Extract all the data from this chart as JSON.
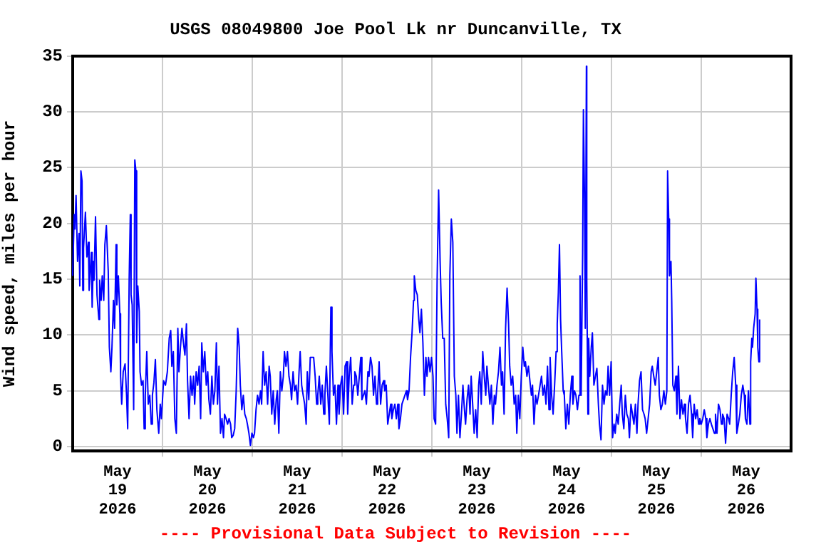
{
  "chart_data": {
    "type": "line",
    "title": "USGS 08049800 Joe Pool Lk nr Duncanville, TX",
    "ylabel": "Wind speed, miles per hour",
    "annotations": [
      "---- Provisional Data Subject to Revision ----"
    ],
    "xlim": [
      "2026-05-19T00:00",
      "2026-05-27T00:00"
    ],
    "xticks": [
      {
        "value": "2026-05-19T12:00",
        "label": "May 19 2026"
      },
      {
        "value": "2026-05-20T00:00",
        "label": null
      },
      {
        "value": "2026-05-20T12:00",
        "label": "May 20 2026"
      },
      {
        "value": "2026-05-21T00:00",
        "label": null
      },
      {
        "value": "2026-05-21T12:00",
        "label": "May 21 2026"
      },
      {
        "value": "2026-05-22T00:00",
        "label": null
      },
      {
        "value": "2026-05-22T12:00",
        "label": "May 22 2026"
      },
      {
        "value": "2026-05-23T00:00",
        "label": null
      },
      {
        "value": "2026-05-23T12:00",
        "label": "May 23 2026"
      },
      {
        "value": "2026-05-24T00:00",
        "label": null
      },
      {
        "value": "2026-05-24T12:00",
        "label": "May 24 2026"
      },
      {
        "value": "2026-05-25T00:00",
        "label": null
      },
      {
        "value": "2026-05-25T12:00",
        "label": "May 25 2026"
      },
      {
        "value": "2026-05-26T00:00",
        "label": null
      },
      {
        "value": "2026-05-26T12:00",
        "label": "May 26 2026"
      }
    ],
    "ylim": [
      -0.4,
      35
    ],
    "yticks": [
      0,
      5,
      10,
      15,
      20,
      25,
      30,
      35
    ],
    "grid": true,
    "legend": false,
    "marker": "none",
    "series": [
      {
        "color": "#0000ff",
        "x": [
          "2026-05-19T00:00",
          "2026-05-19T00:24",
          "2026-05-19T00:36",
          "2026-05-19T00:54",
          "2026-05-19T01:18",
          "2026-05-19T01:42",
          "2026-05-19T01:54",
          "2026-05-19T02:12",
          "2026-05-19T02:30",
          "2026-05-19T02:42",
          "2026-05-19T02:54",
          "2026-05-19T03:24",
          "2026-05-19T03:48",
          "2026-05-19T04:12",
          "2026-05-19T04:24",
          "2026-05-19T05:00",
          "2026-05-19T05:12",
          "2026-05-19T05:30",
          "2026-05-19T05:42",
          "2026-05-19T06:06",
          "2026-05-19T06:30",
          "2026-05-19T07:00",
          "2026-05-19T07:12",
          "2026-05-19T07:36",
          "2026-05-19T07:54",
          "2026-05-19T08:18",
          "2026-05-19T08:36",
          "2026-05-19T09:00",
          "2026-05-19T09:30",
          "2026-05-19T09:48",
          "2026-05-19T10:12",
          "2026-05-19T10:30",
          "2026-05-19T10:54",
          "2026-05-19T11:12",
          "2026-05-19T11:36",
          "2026-05-19T11:48",
          "2026-05-19T12:12",
          "2026-05-19T12:36",
          "2026-05-19T12:48",
          "2026-05-19T13:06",
          "2026-05-19T13:30",
          "2026-05-19T14:00",
          "2026-05-19T14:24",
          "2026-05-19T14:42",
          "2026-05-19T15:06",
          "2026-05-19T15:24",
          "2026-05-19T15:36",
          "2026-05-19T15:54",
          "2026-05-19T16:18",
          "2026-05-19T16:36",
          "2026-05-19T16:54",
          "2026-05-19T17:06",
          "2026-05-19T17:24",
          "2026-05-19T17:48",
          "2026-05-19T18:00",
          "2026-05-19T18:24",
          "2026-05-19T18:48",
          "2026-05-19T19:06",
          "2026-05-19T19:24",
          "2026-05-19T19:48",
          "2026-05-19T20:12",
          "2026-05-19T20:36",
          "2026-05-19T21:00",
          "2026-05-19T21:18",
          "2026-05-19T21:42",
          "2026-05-19T22:06",
          "2026-05-19T22:30",
          "2026-05-19T23:00",
          "2026-05-19T23:24",
          "2026-05-19T23:42",
          "2026-05-20T00:18",
          "2026-05-20T00:48",
          "2026-05-20T01:18",
          "2026-05-20T01:48",
          "2026-05-20T02:12",
          "2026-05-20T02:30",
          "2026-05-20T02:54",
          "2026-05-20T03:18",
          "2026-05-20T03:42",
          "2026-05-20T04:06",
          "2026-05-20T04:24",
          "2026-05-20T04:48",
          "2026-05-20T05:12",
          "2026-05-20T05:36",
          "2026-05-20T06:00",
          "2026-05-20T06:24",
          "2026-05-20T06:42",
          "2026-05-20T07:06",
          "2026-05-20T07:30",
          "2026-05-20T07:54",
          "2026-05-20T08:18",
          "2026-05-20T08:36",
          "2026-05-20T09:00",
          "2026-05-20T09:24",
          "2026-05-20T09:48",
          "2026-05-20T10:12",
          "2026-05-20T10:30",
          "2026-05-20T10:54",
          "2026-05-20T11:18",
          "2026-05-20T11:42",
          "2026-05-20T12:06",
          "2026-05-20T12:24",
          "2026-05-20T12:48",
          "2026-05-20T13:12",
          "2026-05-20T13:36",
          "2026-05-20T14:00",
          "2026-05-20T14:24",
          "2026-05-20T14:42",
          "2026-05-20T15:06",
          "2026-05-20T15:30",
          "2026-05-20T15:54",
          "2026-05-20T16:18",
          "2026-05-20T16:36",
          "2026-05-20T17:00",
          "2026-05-20T17:24",
          "2026-05-20T17:48",
          "2026-05-20T18:12",
          "2026-05-20T18:30",
          "2026-05-20T18:54",
          "2026-05-20T19:18",
          "2026-05-20T19:42",
          "2026-05-20T20:06",
          "2026-05-20T20:30",
          "2026-05-20T20:48",
          "2026-05-20T21:12",
          "2026-05-20T21:36",
          "2026-05-20T22:00",
          "2026-05-20T22:24",
          "2026-05-20T22:42",
          "2026-05-20T23:06",
          "2026-05-20T23:30",
          "2026-05-20T23:54",
          "2026-05-21T00:18",
          "2026-05-21T00:36",
          "2026-05-21T01:00",
          "2026-05-21T01:24",
          "2026-05-21T01:48",
          "2026-05-21T02:12",
          "2026-05-21T02:30",
          "2026-05-21T02:54",
          "2026-05-21T03:18",
          "2026-05-21T03:42",
          "2026-05-21T04:06",
          "2026-05-21T04:30",
          "2026-05-21T04:48",
          "2026-05-21T05:12",
          "2026-05-21T05:36",
          "2026-05-21T06:00",
          "2026-05-21T06:24",
          "2026-05-21T06:42",
          "2026-05-21T07:06",
          "2026-05-21T07:30",
          "2026-05-21T07:54",
          "2026-05-21T08:18",
          "2026-05-21T08:36",
          "2026-05-21T09:00",
          "2026-05-21T09:24",
          "2026-05-21T09:48",
          "2026-05-21T10:12",
          "2026-05-21T10:30",
          "2026-05-21T10:54",
          "2026-05-21T11:18",
          "2026-05-21T11:42",
          "2026-05-21T12:06",
          "2026-05-21T12:30",
          "2026-05-21T12:48",
          "2026-05-21T13:12",
          "2026-05-21T13:36",
          "2026-05-21T14:00",
          "2026-05-21T14:24",
          "2026-05-21T14:42",
          "2026-05-21T15:06",
          "2026-05-21T15:30",
          "2026-05-21T16:24",
          "2026-05-21T16:48",
          "2026-05-21T17:12",
          "2026-05-21T17:30",
          "2026-05-21T17:54",
          "2026-05-21T18:18",
          "2026-05-21T18:42",
          "2026-05-21T19:06",
          "2026-05-21T19:24",
          "2026-05-21T19:48",
          "2026-05-21T20:12",
          "2026-05-21T20:36",
          "2026-05-21T21:00",
          "2026-05-21T21:18",
          "2026-05-21T21:42",
          "2026-05-21T22:06",
          "2026-05-21T22:30",
          "2026-05-21T22:54",
          "2026-05-21T23:12",
          "2026-05-21T23:36",
          "2026-05-22T00:00",
          "2026-05-22T00:24",
          "2026-05-22T00:48",
          "2026-05-22T01:12",
          "2026-05-22T01:30",
          "2026-05-22T01:54",
          "2026-05-22T02:18",
          "2026-05-22T02:42",
          "2026-05-22T03:06",
          "2026-05-22T03:24",
          "2026-05-22T03:48",
          "2026-05-22T04:12",
          "2026-05-22T04:36",
          "2026-05-22T05:00",
          "2026-05-22T05:18",
          "2026-05-22T05:42",
          "2026-05-22T06:06",
          "2026-05-22T06:30",
          "2026-05-22T06:54",
          "2026-05-22T07:12",
          "2026-05-22T07:36",
          "2026-05-22T08:00",
          "2026-05-22T08:24",
          "2026-05-22T08:48",
          "2026-05-22T09:12",
          "2026-05-22T09:30",
          "2026-05-22T09:54",
          "2026-05-22T10:18",
          "2026-05-22T10:42",
          "2026-05-22T11:06",
          "2026-05-22T11:24",
          "2026-05-22T11:48",
          "2026-05-22T12:12",
          "2026-05-22T12:36",
          "2026-05-22T13:00",
          "2026-05-22T13:18",
          "2026-05-22T13:42",
          "2026-05-22T14:06",
          "2026-05-22T14:30",
          "2026-05-22T14:54",
          "2026-05-22T15:12",
          "2026-05-22T15:36",
          "2026-05-22T16:00",
          "2026-05-22T16:24",
          "2026-05-22T16:48",
          "2026-05-22T17:12",
          "2026-05-22T17:30",
          "2026-05-22T17:54",
          "2026-05-22T18:18",
          "2026-05-22T18:42",
          "2026-05-22T19:06",
          "2026-05-22T19:18",
          "2026-05-22T19:42",
          "2026-05-22T20:06",
          "2026-05-22T20:30",
          "2026-05-22T20:48",
          "2026-05-22T21:12",
          "2026-05-22T21:36",
          "2026-05-22T22:00",
          "2026-05-22T22:24",
          "2026-05-22T22:42",
          "2026-05-22T23:06",
          "2026-05-22T23:30",
          "2026-05-22T23:54",
          "2026-05-23T00:18",
          "2026-05-23T00:36",
          "2026-05-23T01:00",
          "2026-05-23T01:24",
          "2026-05-23T01:48",
          "2026-05-23T02:12",
          "2026-05-23T02:30",
          "2026-05-23T02:54",
          "2026-05-23T03:18",
          "2026-05-23T03:42",
          "2026-05-23T04:06",
          "2026-05-23T04:30",
          "2026-05-23T04:48",
          "2026-05-23T05:12",
          "2026-05-23T05:36",
          "2026-05-23T06:00",
          "2026-05-23T06:24",
          "2026-05-23T06:42",
          "2026-05-23T07:06",
          "2026-05-23T07:30",
          "2026-05-23T07:54",
          "2026-05-23T08:18",
          "2026-05-23T08:36",
          "2026-05-23T09:00",
          "2026-05-23T09:24",
          "2026-05-23T09:48",
          "2026-05-23T10:12",
          "2026-05-23T10:30",
          "2026-05-23T10:54",
          "2026-05-23T11:18",
          "2026-05-23T11:42",
          "2026-05-23T12:06",
          "2026-05-23T12:30",
          "2026-05-23T12:48",
          "2026-05-23T13:12",
          "2026-05-23T13:36",
          "2026-05-23T14:00",
          "2026-05-23T14:24",
          "2026-05-23T14:42",
          "2026-05-23T15:06",
          "2026-05-23T15:30",
          "2026-05-23T15:54",
          "2026-05-23T16:18",
          "2026-05-23T16:42",
          "2026-05-23T17:00",
          "2026-05-23T17:24",
          "2026-05-23T17:48",
          "2026-05-23T18:12",
          "2026-05-23T18:36",
          "2026-05-23T18:54",
          "2026-05-23T19:18",
          "2026-05-23T19:42",
          "2026-05-23T20:06",
          "2026-05-23T20:30",
          "2026-05-23T20:48",
          "2026-05-23T21:12",
          "2026-05-23T21:36",
          "2026-05-23T22:00",
          "2026-05-23T22:24",
          "2026-05-23T22:42",
          "2026-05-23T23:06",
          "2026-05-23T23:30",
          "2026-05-23T23:54",
          "2026-05-24T00:18",
          "2026-05-24T00:42",
          "2026-05-24T01:00",
          "2026-05-24T01:24",
          "2026-05-24T01:48",
          "2026-05-24T02:12",
          "2026-05-24T02:36",
          "2026-05-24T02:54",
          "2026-05-24T03:18",
          "2026-05-24T03:42",
          "2026-05-24T04:06",
          "2026-05-24T04:30",
          "2026-05-24T05:18",
          "2026-05-24T05:42",
          "2026-05-24T06:06",
          "2026-05-24T06:30",
          "2026-05-24T06:54",
          "2026-05-24T07:18",
          "2026-05-24T07:36",
          "2026-05-24T08:00",
          "2026-05-24T08:24",
          "2026-05-24T08:48",
          "2026-05-24T09:12",
          "2026-05-24T09:30",
          "2026-05-24T09:48",
          "2026-05-24T10:06",
          "2026-05-24T10:24",
          "2026-05-24T10:42",
          "2026-05-24T11:06",
          "2026-05-24T11:24",
          "2026-05-24T11:48",
          "2026-05-24T12:12",
          "2026-05-24T12:36",
          "2026-05-24T13:00",
          "2026-05-24T13:24",
          "2026-05-24T13:42",
          "2026-05-24T14:06",
          "2026-05-24T14:30",
          "2026-05-24T14:54",
          "2026-05-24T15:18",
          "2026-05-24T15:36",
          "2026-05-24T15:54",
          "2026-05-24T16:18",
          "2026-05-24T16:30",
          "2026-05-24T16:48",
          "2026-05-24T17:00",
          "2026-05-24T17:18",
          "2026-05-24T17:24",
          "2026-05-24T17:42",
          "2026-05-24T17:54",
          "2026-05-24T18:12",
          "2026-05-24T18:36",
          "2026-05-24T18:54",
          "2026-05-24T19:18",
          "2026-05-24T19:42",
          "2026-05-24T20:06",
          "2026-05-24T20:30",
          "2026-05-24T20:48",
          "2026-05-24T21:12",
          "2026-05-24T21:36",
          "2026-05-24T22:00",
          "2026-05-24T22:24",
          "2026-05-24T22:48",
          "2026-05-24T23:06",
          "2026-05-24T23:30",
          "2026-05-24T23:54",
          "2026-05-25T00:18",
          "2026-05-25T00:42",
          "2026-05-25T01:00",
          "2026-05-25T01:24",
          "2026-05-25T01:48",
          "2026-05-25T02:12",
          "2026-05-25T02:36",
          "2026-05-25T02:54",
          "2026-05-25T03:18",
          "2026-05-25T03:42",
          "2026-05-25T04:06",
          "2026-05-25T04:30",
          "2026-05-25T04:48",
          "2026-05-25T05:12",
          "2026-05-25T05:36",
          "2026-05-25T06:00",
          "2026-05-25T06:24",
          "2026-05-25T06:48",
          "2026-05-25T07:06",
          "2026-05-25T07:30",
          "2026-05-25T07:54",
          "2026-05-25T08:18",
          "2026-05-25T08:42",
          "2026-05-25T09:00",
          "2026-05-25T09:24",
          "2026-05-25T09:48",
          "2026-05-25T10:12",
          "2026-05-25T10:36",
          "2026-05-25T10:54",
          "2026-05-25T11:18",
          "2026-05-25T11:42",
          "2026-05-25T12:06",
          "2026-05-25T12:30",
          "2026-05-25T12:48",
          "2026-05-25T13:12",
          "2026-05-25T13:36",
          "2026-05-25T14:00",
          "2026-05-25T14:24",
          "2026-05-25T14:48",
          "2026-05-25T15:00",
          "2026-05-25T15:18",
          "2026-05-25T15:30",
          "2026-05-25T15:54",
          "2026-05-25T16:06",
          "2026-05-25T16:24",
          "2026-05-25T16:48",
          "2026-05-25T17:12",
          "2026-05-25T17:30",
          "2026-05-25T17:54",
          "2026-05-25T18:18",
          "2026-05-25T18:42",
          "2026-05-25T19:06",
          "2026-05-25T19:30",
          "2026-05-25T19:48",
          "2026-05-25T20:12",
          "2026-05-25T20:36",
          "2026-05-25T21:00",
          "2026-05-25T21:24",
          "2026-05-25T21:42",
          "2026-05-25T22:06",
          "2026-05-25T22:30",
          "2026-05-25T22:54",
          "2026-05-25T23:18",
          "2026-05-25T23:36",
          "2026-05-26T00:00",
          "2026-05-26T00:24",
          "2026-05-26T00:48",
          "2026-05-26T01:12",
          "2026-05-26T01:30",
          "2026-05-26T01:54",
          "2026-05-26T02:18",
          "2026-05-26T02:42",
          "2026-05-26T03:06",
          "2026-05-26T03:30",
          "2026-05-26T03:48",
          "2026-05-26T04:12",
          "2026-05-26T04:36",
          "2026-05-26T05:00",
          "2026-05-26T05:24",
          "2026-05-26T05:42",
          "2026-05-26T06:06",
          "2026-05-26T06:30",
          "2026-05-26T06:54",
          "2026-05-26T07:18",
          "2026-05-26T07:36",
          "2026-05-26T08:00",
          "2026-05-26T08:24",
          "2026-05-26T08:48",
          "2026-05-26T09:12",
          "2026-05-26T09:30",
          "2026-05-26T09:54",
          "2026-05-26T10:18",
          "2026-05-26T10:42",
          "2026-05-26T11:06",
          "2026-05-26T11:30",
          "2026-05-26T11:48",
          "2026-05-26T12:12",
          "2026-05-26T12:36",
          "2026-05-26T13:00",
          "2026-05-26T13:12",
          "2026-05-26T13:30",
          "2026-05-26T13:42",
          "2026-05-26T14:00",
          "2026-05-26T14:24",
          "2026-05-26T14:36",
          "2026-05-26T14:54",
          "2026-05-26T15:06",
          "2026-05-26T15:24",
          "2026-05-26T15:36"
        ],
        "values": [
          15.3,
          20.8,
          19.5,
          22.5,
          16.6,
          19.1,
          14.4,
          24.7,
          23.8,
          14,
          17.8,
          21,
          17,
          18.3,
          14,
          17.4,
          12.5,
          16.6,
          14.9,
          20.6,
          13.6,
          11.4,
          14.9,
          13.1,
          15.3,
          13.1,
          18.1,
          19.8,
          15.7,
          8.9,
          6.7,
          8.9,
          13.1,
          10.6,
          18.1,
          12.7,
          15.3,
          11.9,
          6.3,
          3.8,
          6.7,
          7.4,
          4.6,
          1.6,
          15.1,
          20.8,
          13.6,
          12.7,
          3.3,
          25.7,
          24.7,
          9.3,
          14.4,
          12.1,
          6.7,
          5.5,
          5.9,
          1.6,
          4.6,
          8.5,
          3.8,
          4.6,
          2,
          4.6,
          5.7,
          7.8,
          3.3,
          1.2,
          3.8,
          2.5,
          5.9,
          5.5,
          6.7,
          9.7,
          10.4,
          7.2,
          8.5,
          2.5,
          1.2,
          10.6,
          6.7,
          8.9,
          10.6,
          9.3,
          8.2,
          11,
          5.9,
          2.5,
          6.3,
          4.6,
          6.3,
          3.8,
          6.7,
          5.5,
          7.2,
          2.5,
          9.3,
          6.7,
          8.5,
          5.5,
          6.7,
          4.2,
          2.9,
          6.3,
          3.8,
          5,
          9.3,
          3.8,
          7.2,
          1.2,
          2.5,
          0.8,
          2.9,
          2.5,
          2,
          2.5,
          2,
          0.8,
          1,
          1.6,
          5,
          10.6,
          8.9,
          5.5,
          3.3,
          4.6,
          2.9,
          2.5,
          2,
          1.2,
          0.1,
          1.2,
          0.8,
          1.2,
          3.3,
          4.6,
          3.8,
          5,
          3.8,
          8.5,
          5.5,
          6.7,
          3.8,
          7.2,
          6.3,
          2.9,
          5,
          2,
          4.2,
          5,
          1.2,
          6.7,
          5,
          6.3,
          8.5,
          7.2,
          8.5,
          6.3,
          5.5,
          4.2,
          6.7,
          5,
          5.5,
          3.8,
          6.7,
          8.5,
          5.5,
          4.6,
          3.8,
          2,
          6.7,
          4.2,
          8,
          8,
          6.3,
          3.8,
          4.6,
          6.3,
          3.8,
          5.5,
          2.9,
          4.6,
          7.2,
          4.6,
          2,
          12.5,
          8.5,
          4.6,
          5.5,
          2,
          5.5,
          2.9,
          5.5,
          6.3,
          2.9,
          7.2,
          7.6,
          2.9,
          6.3,
          8,
          3.8,
          5.5,
          6.7,
          6.3,
          4.6,
          6.3,
          8,
          4.2,
          4.6,
          5,
          3.8,
          6.7,
          6.3,
          8,
          7.2,
          4.6,
          6.3,
          3.8,
          4.6,
          7.6,
          3.8,
          5.5,
          5.9,
          5,
          5.5,
          2,
          2.9,
          3.8,
          2.5,
          3.3,
          3.8,
          2.5,
          3.8,
          1.6,
          2.5,
          3.8,
          4.2,
          4.6,
          5,
          4.2,
          5,
          8,
          10.2,
          13.1,
          15.3,
          14,
          13.6,
          11.4,
          10.2,
          12.3,
          9.3,
          4.6,
          8,
          6.3,
          8,
          6.7,
          8,
          6.3,
          2.5,
          2,
          14.9,
          23,
          16.6,
          12.9,
          9.7,
          9.7,
          3.8,
          2.5,
          0.8,
          15.3,
          20.4,
          18.3,
          6.3,
          4.6,
          1.2,
          4.6,
          0.8,
          2.9,
          5.5,
          3.8,
          2,
          4.2,
          5.5,
          2.9,
          6.3,
          3.8,
          1.2,
          3.3,
          0.8,
          5.5,
          6.7,
          3.8,
          8.5,
          6.3,
          4.6,
          7.2,
          5.5,
          3.8,
          5.5,
          2,
          4.6,
          3.8,
          5.5,
          6.7,
          8.9,
          5.5,
          6.7,
          2.9,
          10.6,
          14.2,
          11,
          7.2,
          5.5,
          6.3,
          3.8,
          4.6,
          1.2,
          4.6,
          2.5,
          6.3,
          8.9,
          7.2,
          7.6,
          6.3,
          7.2,
          5.9,
          4.6,
          5.5,
          2,
          4.6,
          3.8,
          4.6,
          6.3,
          4.6,
          5.5,
          3.8,
          7.2,
          3.3,
          8,
          4.6,
          2.9,
          5.5,
          8.5,
          11,
          13.8,
          18.1,
          11.4,
          8.5,
          5,
          4.6,
          1.6,
          3.8,
          2,
          4.6,
          6.3,
          3.8,
          5,
          4.6,
          3.3,
          4.6,
          15.3,
          4.6,
          17.4,
          30.2,
          22.1,
          10.6,
          34.1,
          14.9,
          2.9,
          9.7,
          6.3,
          8.9,
          10.2,
          5.5,
          6.3,
          7,
          3.8,
          2,
          0.6,
          5.5,
          3.8,
          5,
          4.6,
          7.2,
          4.6,
          7.6,
          0.8,
          2,
          1.2,
          2.9,
          2,
          3.8,
          5.5,
          2.9,
          1.6,
          4.6,
          2.9,
          2.5,
          0.8,
          3.8,
          2.9,
          2,
          3.8,
          1.2,
          3.8,
          5.9,
          6.7,
          3.3,
          2.9,
          2.5,
          1.2,
          2.5,
          3.8,
          6.7,
          7.2,
          6.3,
          5.5,
          6.7,
          8,
          4.6,
          3.3,
          3.8,
          5,
          3.8,
          5,
          24.7,
          20.4,
          15.3,
          16.6,
          13.1,
          5.5,
          5,
          6.3,
          2.9,
          7.2,
          2.5,
          4.2,
          2.9,
          3.8,
          2.5,
          1.2,
          3.8,
          4.6,
          2.9,
          0.8,
          3.8,
          2.5,
          3.3,
          2,
          2.5,
          2,
          2.5,
          3.3,
          2.5,
          0.8,
          2,
          2.5,
          2,
          1.6,
          1.2,
          2.9,
          1.2,
          3.8,
          3.3,
          2,
          2.9,
          2.5,
          0.3,
          2.9,
          2.5,
          2,
          4.6,
          6.7,
          8,
          5.5,
          1.2,
          2,
          2.9,
          4.6,
          5.5,
          4.6,
          2.5,
          2,
          5,
          2,
          7.6,
          9.7,
          8.9,
          10.6,
          11.9,
          15.1,
          12.3,
          8.9,
          7.6,
          11.4
        ]
      }
    ]
  }
}
